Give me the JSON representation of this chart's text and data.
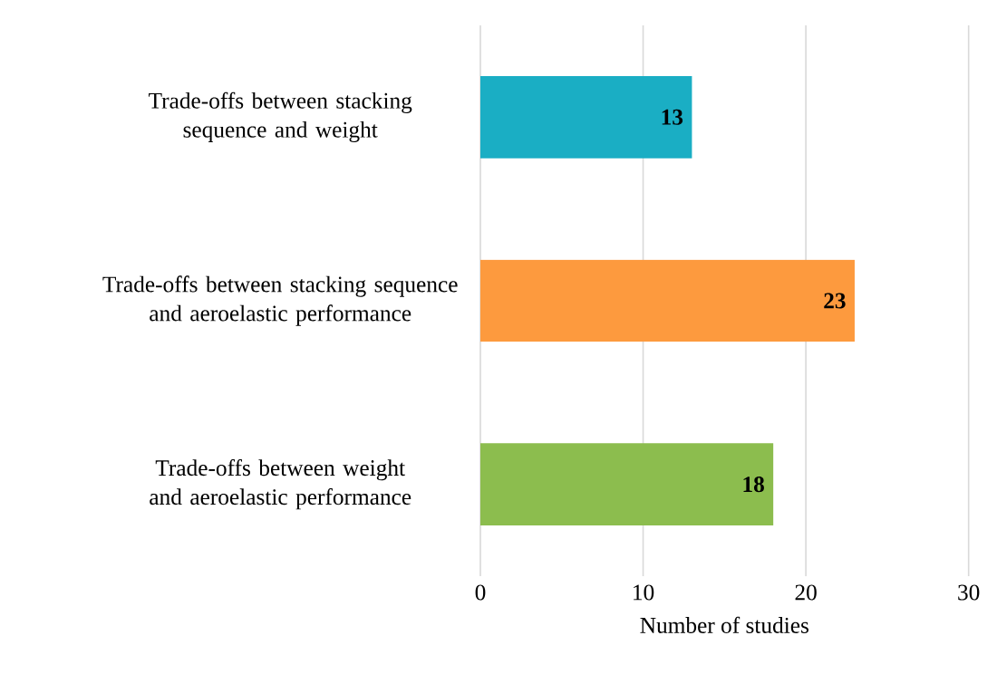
{
  "chart_data": {
    "type": "bar",
    "orientation": "horizontal",
    "xlabel": "Number of studies",
    "categories": [
      "Trade-offs between stacking sequence and weight",
      "Trade-offs between stacking sequence and aeroelastic performance",
      "Trade-offs between weight and aeroelastic performance"
    ],
    "values": [
      13,
      23,
      18
    ],
    "colors": [
      "#1aaec4",
      "#fd9a3e",
      "#8cbd4e"
    ],
    "xlim": [
      0,
      30
    ],
    "xticks": [
      0,
      10,
      20,
      30
    ],
    "grid": "x",
    "data_labels": true
  }
}
